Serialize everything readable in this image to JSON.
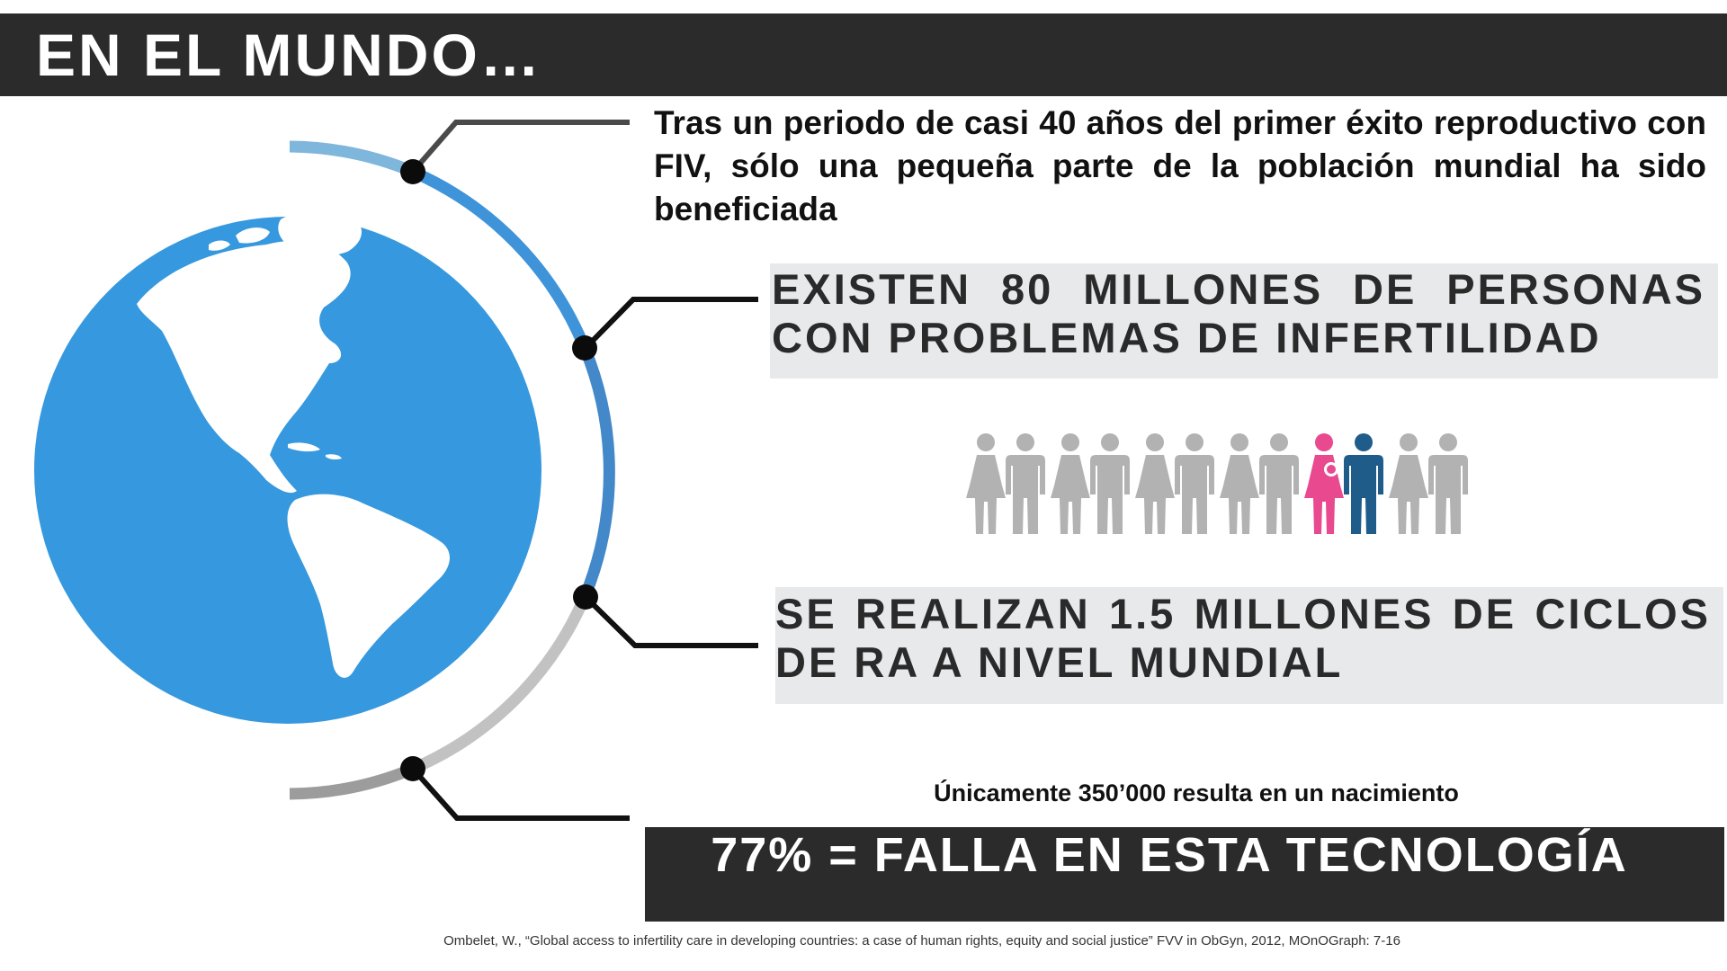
{
  "title": "EN EL MUNDO…",
  "intro_text": "Tras un periodo de casi 40 años del primer éxito reproductivo con FIV, sólo una pequeña parte de la población mundial ha sido beneficiada",
  "stat_people": "EXISTEN 80 MILLONES DE PERSONAS CON PROBLEMAS DE INFERTILIDAD",
  "stat_cycles": "SE REALIZAN 1.5 MILLONES DE CICLOS DE RA A NIVEL MUNDIAL",
  "births_note": "Únicamente 350’000 resulta en un nacimiento",
  "failure_banner": "77% = FALLA EN ESTA TECNOLOGÍA",
  "reference": "Ombelet, W., “Global access to infertility care in developing countries: a case of human rights, equity and social justice” FVV in ObGyn, 2012, MOnOGraph: 7-16",
  "colors": {
    "dark_bar": "#2b2b2b",
    "globe_ocean": "#3698de",
    "arc_light_blue": "#7fb6dc",
    "arc_blue": "#3f93d9",
    "arc_dark_blue": "#4388c9",
    "arc_light_gray": "#c2c2c2",
    "arc_gray": "#9c9c9c",
    "figure_gray": "#b2b2b2",
    "figure_highlight_pink": "#e8498f",
    "figure_highlight_blue": "#1f5c8a",
    "stat_box": "#e7e9eb"
  },
  "icons": [
    "globe-icon",
    "person-woman-icon",
    "person-man-icon",
    "person-woman-with-baby-icon"
  ],
  "people_pictogram": {
    "pairs_total": 6,
    "highlighted_pair": 5
  }
}
